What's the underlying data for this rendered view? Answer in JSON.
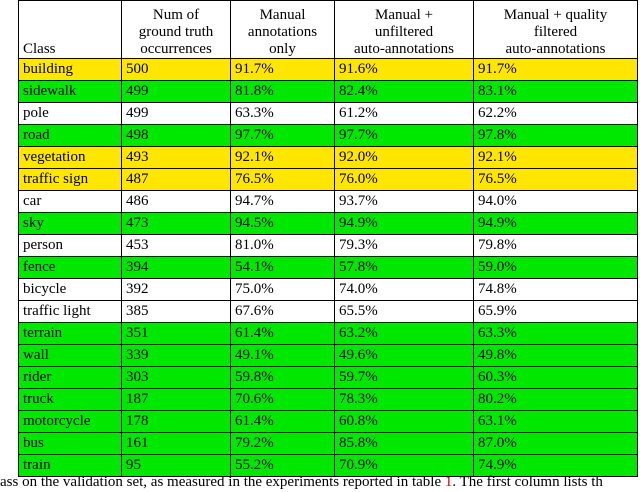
{
  "table": {
    "headers": [
      [
        "Class"
      ],
      [
        "Num of",
        "ground truth",
        "occurrences"
      ],
      [
        "Manual",
        "annotations",
        "only"
      ],
      [
        "Manual +",
        "unfiltered",
        "auto-annotations"
      ],
      [
        "Manual + quality",
        "filtered",
        "auto-annotations"
      ]
    ],
    "rows": [
      {
        "color": "yellow",
        "cells": [
          "building",
          "500",
          "91.7%",
          "91.6%",
          "91.7%"
        ]
      },
      {
        "color": "green",
        "cells": [
          "sidewalk",
          "499",
          "81.8%",
          "82.4%",
          "83.1%"
        ]
      },
      {
        "color": "white",
        "cells": [
          "pole",
          "499",
          "63.3%",
          "61.2%",
          "62.2%"
        ]
      },
      {
        "color": "green",
        "cells": [
          "road",
          "498",
          "97.7%",
          "97.7%",
          "97.8%"
        ]
      },
      {
        "color": "yellow",
        "cells": [
          "vegetation",
          "493",
          "92.1%",
          "92.0%",
          "92.1%"
        ]
      },
      {
        "color": "yellow",
        "cells": [
          "traffic sign",
          "487",
          "76.5%",
          "76.0%",
          "76.5%"
        ]
      },
      {
        "color": "white",
        "cells": [
          "car",
          "486",
          "94.7%",
          "93.7%",
          "94.0%"
        ]
      },
      {
        "color": "green",
        "cells": [
          "sky",
          "473",
          "94.5%",
          "94.9%",
          "94.9%"
        ]
      },
      {
        "color": "white",
        "cells": [
          "person",
          "453",
          "81.0%",
          "79.3%",
          "79.8%"
        ]
      },
      {
        "color": "green",
        "cells": [
          "fence",
          "394",
          "54.1%",
          "57.8%",
          "59.0%"
        ]
      },
      {
        "color": "white",
        "cells": [
          "bicycle",
          "392",
          "75.0%",
          "74.0%",
          "74.8%"
        ]
      },
      {
        "color": "white",
        "cells": [
          "traffic light",
          "385",
          "67.6%",
          "65.5%",
          "65.9%"
        ]
      },
      {
        "color": "green",
        "cells": [
          "terrain",
          "351",
          "61.4%",
          "63.2%",
          "63.3%"
        ]
      },
      {
        "color": "green",
        "cells": [
          "wall",
          "339",
          "49.1%",
          "49.6%",
          "49.8%"
        ]
      },
      {
        "color": "green",
        "cells": [
          "rider",
          "303",
          "59.8%",
          "59.7%",
          "60.3%"
        ]
      },
      {
        "color": "green",
        "cells": [
          "truck",
          "187",
          "70.6%",
          "78.3%",
          "80.2%"
        ]
      },
      {
        "color": "green",
        "cells": [
          "motorcycle",
          "178",
          "61.4%",
          "60.8%",
          "63.1%"
        ]
      },
      {
        "color": "green",
        "cells": [
          "bus",
          "161",
          "79.2%",
          "85.8%",
          "87.0%"
        ]
      },
      {
        "color": "green",
        "cells": [
          "train",
          "95",
          "55.2%",
          "70.9%",
          "74.9%"
        ]
      }
    ],
    "row_colors": {
      "yellow": "#ffe600",
      "green": "#00e800",
      "white": "#ffffff"
    }
  },
  "caption": {
    "before": "ass on the validation set, as measured in the experiments reported in table ",
    "ref": "1",
    "after": ". The first column lists th"
  }
}
